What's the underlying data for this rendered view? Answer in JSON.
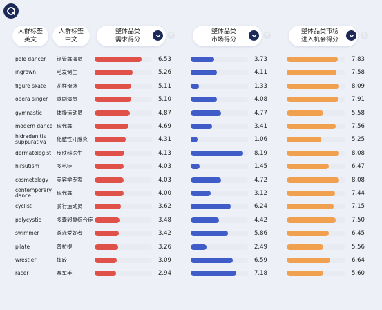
{
  "headers": {
    "en": "人群标签\n英文",
    "zh": "人群标签\n中文",
    "demand": "整体品类\n需求得分",
    "market": "整体品类\n市场得分",
    "opportunity": "整体品类市场\n进入机会得分",
    "help": "?"
  },
  "icons": {
    "logo": "logo-icon",
    "sort": "chevron-down-icon",
    "help": "help-icon"
  },
  "colors": {
    "demand": "#e05149",
    "market": "#3f5cc9",
    "opportunity": "#f0a04e"
  },
  "scales": {
    "demand_max": 8,
    "market_max": 9,
    "opportunity_max": 9
  },
  "rows": [
    {
      "en": "pole dancer",
      "zh": "钢管舞演员",
      "demand": "6.53",
      "market": "3.73",
      "opportunity": "7.83"
    },
    {
      "en": "ingrown",
      "zh": "毛发倒生",
      "demand": "5.26",
      "market": "4.11",
      "opportunity": "7.58"
    },
    {
      "en": "figure skate",
      "zh": "花样滑冰",
      "demand": "5.11",
      "market": "1.33",
      "opportunity": "8.09"
    },
    {
      "en": "opera singer",
      "zh": "歌剧演员",
      "demand": "5.10",
      "market": "4.08",
      "opportunity": "7.91"
    },
    {
      "en": "gymnastic",
      "zh": "体操运动员",
      "demand": "4.87",
      "market": "4.77",
      "opportunity": "5.58"
    },
    {
      "en": "modern dance",
      "zh": "现代舞",
      "demand": "4.69",
      "market": "3.41",
      "opportunity": "7.56"
    },
    {
      "en": "hidradenitis suppurativa",
      "zh": "化脓性汗腺炎",
      "demand": "4.31",
      "market": "1.06",
      "opportunity": "5.25"
    },
    {
      "en": "dermatologist",
      "zh": "皮肤科医生",
      "demand": "4.13",
      "market": "8.19",
      "opportunity": "8.08"
    },
    {
      "en": "hirsutism",
      "zh": "多毛症",
      "demand": "4.03",
      "market": "1.45",
      "opportunity": "6.47"
    },
    {
      "en": "cosmetology",
      "zh": "美容学专家",
      "demand": "4.03",
      "market": "4.72",
      "opportunity": "8.08"
    },
    {
      "en": "contemporary dance",
      "zh": "现代舞",
      "demand": "4.00",
      "market": "3.12",
      "opportunity": "7.44"
    },
    {
      "en": "cyclist",
      "zh": "骑行运动员",
      "demand": "3.62",
      "market": "6.24",
      "opportunity": "7.15"
    },
    {
      "en": "polycystic",
      "zh": "多囊卵巢综合症",
      "demand": "3.48",
      "market": "4.42",
      "opportunity": "7.50"
    },
    {
      "en": "swimmer",
      "zh": "游泳爱好者",
      "demand": "3.42",
      "market": "5.86",
      "opportunity": "6.45"
    },
    {
      "en": "pilate",
      "zh": "普拉提",
      "demand": "3.26",
      "market": "2.49",
      "opportunity": "5.56"
    },
    {
      "en": "wrestler",
      "zh": "摔跤",
      "demand": "3.09",
      "market": "6.59",
      "opportunity": "6.64"
    },
    {
      "en": "racer",
      "zh": "赛车手",
      "demand": "2.94",
      "market": "7.18",
      "opportunity": "5.60"
    }
  ]
}
